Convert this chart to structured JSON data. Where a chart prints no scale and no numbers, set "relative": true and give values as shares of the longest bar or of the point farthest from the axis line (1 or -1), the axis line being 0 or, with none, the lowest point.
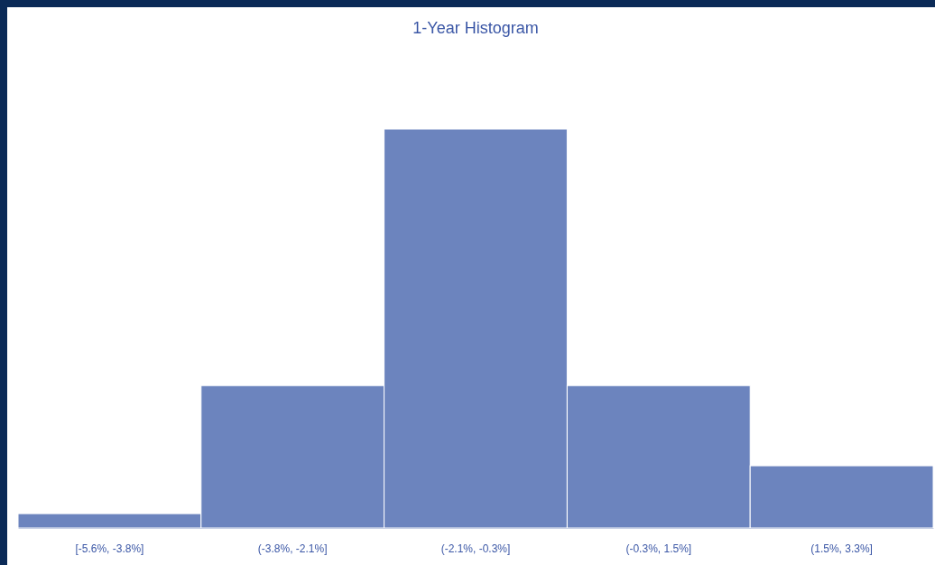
{
  "chart_data": {
    "type": "bar",
    "title": "1-Year Histogram",
    "categories": [
      "[-5.6%, -3.8%]",
      "(-3.8%, -2.1%]",
      "(-2.1%, -0.3%]",
      "(-0.3%, 1.5%]",
      "(1.5%, 3.3%]"
    ],
    "values": [
      0.036,
      0.357,
      1,
      0.357,
      0.156
    ],
    "color": "#6c84be",
    "relative": true
  }
}
